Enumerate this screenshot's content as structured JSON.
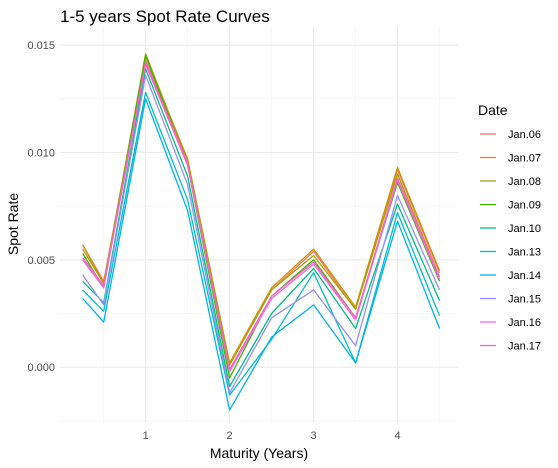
{
  "chart_data": {
    "type": "line",
    "title": "1-5 years Spot Rate Curves",
    "xlabel": "Maturity (Years)",
    "ylabel": "Spot Rate",
    "xlim": [
      -0.02,
      4.72
    ],
    "ylim": [
      -0.0026,
      0.0158
    ],
    "x_ticks": [
      1,
      2,
      3,
      4
    ],
    "x_tick_labels": [
      "1",
      "2",
      "3",
      "4"
    ],
    "y_ticks": [
      0.0,
      0.005,
      0.01,
      0.015
    ],
    "y_tick_labels": [
      "0.000",
      "0.005",
      "0.010",
      "0.015"
    ],
    "grid": true,
    "legend": {
      "title": "Date",
      "position": "right"
    },
    "x": [
      0.25,
      0.5,
      1.0,
      1.5,
      2.0,
      2.5,
      3.0,
      3.5,
      4.0,
      4.5
    ],
    "series": [
      {
        "name": "Jan.06",
        "color": "#F8766D",
        "values": [
          0.0057,
          0.004,
          0.0143,
          0.0096,
          0.0001,
          0.0036,
          0.0054,
          0.0027,
          0.0092,
          0.0044
        ]
      },
      {
        "name": "Jan.07",
        "color": "#D89000",
        "values": [
          0.0057,
          0.0039,
          0.0145,
          0.0097,
          0.0002,
          0.0037,
          0.0055,
          0.0028,
          0.0093,
          0.0045
        ]
      },
      {
        "name": "Jan.08",
        "color": "#A3A500",
        "values": [
          0.0055,
          0.0039,
          0.0146,
          0.0096,
          0.0001,
          0.0036,
          0.0052,
          0.0027,
          0.009,
          0.0042
        ]
      },
      {
        "name": "Jan.09",
        "color": "#39B600",
        "values": [
          0.0053,
          0.0037,
          0.0145,
          0.0094,
          -0.0005,
          0.0033,
          0.005,
          0.0023,
          0.0086,
          0.004
        ]
      },
      {
        "name": "Jan.10",
        "color": "#00BF7D",
        "values": [
          0.004,
          0.003,
          0.0139,
          0.0089,
          -0.0009,
          0.0025,
          0.0046,
          0.0018,
          0.0076,
          0.0031
        ]
      },
      {
        "name": "Jan.13",
        "color": "#00BFC4",
        "values": [
          0.0036,
          0.0026,
          0.0128,
          0.0078,
          -0.0013,
          0.0013,
          0.0044,
          0.0002,
          0.0072,
          0.0024
        ]
      },
      {
        "name": "Jan.14",
        "color": "#00B0F6",
        "values": [
          0.0032,
          0.0021,
          0.0125,
          0.0073,
          -0.002,
          0.0014,
          0.0029,
          0.0002,
          0.0068,
          0.0018
        ]
      },
      {
        "name": "Jan.15",
        "color": "#9590FF",
        "values": [
          0.0043,
          0.0029,
          0.0136,
          0.0085,
          -0.0012,
          0.0023,
          0.0036,
          0.001,
          0.008,
          0.0036
        ]
      },
      {
        "name": "Jan.16",
        "color": "#E76BF3",
        "values": [
          0.005,
          0.0037,
          0.0141,
          0.0094,
          -0.0002,
          0.0032,
          0.0048,
          0.0022,
          0.0087,
          0.0041
        ]
      },
      {
        "name": "Jan.17",
        "color": "#FF62BC",
        "values": [
          0.0051,
          0.0038,
          0.0142,
          0.0095,
          -0.0001,
          0.0033,
          0.0049,
          0.0023,
          0.0088,
          0.0042
        ]
      }
    ]
  }
}
